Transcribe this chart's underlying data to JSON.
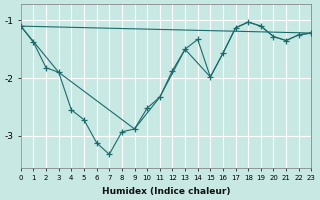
{
  "xlabel": "Humidex (Indice chaleur)",
  "bg_color": "#c8e8e4",
  "grid_color": "#ffffff",
  "line_color": "#1a6b6b",
  "xlim": [
    0,
    23
  ],
  "ylim": [
    -3.55,
    -0.72
  ],
  "yticks": [
    -3,
    -2,
    -1
  ],
  "xticks": [
    0,
    1,
    2,
    3,
    4,
    5,
    6,
    7,
    8,
    9,
    10,
    11,
    12,
    13,
    14,
    15,
    16,
    17,
    18,
    19,
    20,
    21,
    22,
    23
  ],
  "curve1_x": [
    0,
    1,
    2,
    3,
    4,
    5,
    6,
    7,
    8,
    9,
    10,
    11,
    12,
    13,
    14,
    15,
    16,
    17,
    18,
    19,
    20,
    21,
    22,
    23
  ],
  "curve1_y": [
    -1.1,
    -1.38,
    -1.82,
    -1.9,
    -2.55,
    -2.72,
    -3.12,
    -3.32,
    -2.93,
    -2.88,
    -2.52,
    -2.33,
    -1.87,
    -1.5,
    -1.33,
    -1.98,
    -1.57,
    -1.13,
    -1.03,
    -1.1,
    -1.28,
    -1.35,
    -1.25,
    -1.22
  ],
  "curve2_x": [
    0,
    23
  ],
  "curve2_y": [
    -1.1,
    -1.22
  ],
  "curve3_x": [
    0,
    3,
    9,
    11,
    13,
    15,
    16,
    17,
    18,
    19,
    20,
    21,
    22,
    23
  ],
  "curve3_y": [
    -1.1,
    -1.9,
    -2.88,
    -2.33,
    -1.5,
    -1.98,
    -1.57,
    -1.13,
    -1.03,
    -1.1,
    -1.28,
    -1.35,
    -1.25,
    -1.22
  ]
}
